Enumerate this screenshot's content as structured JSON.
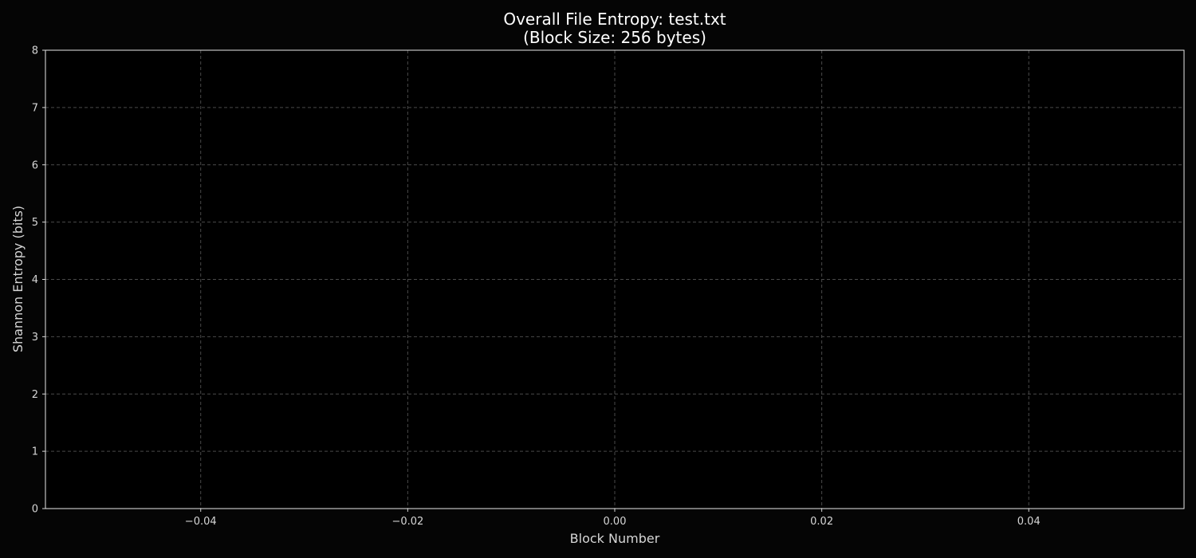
{
  "chart_data": {
    "type": "line",
    "title": "Overall File Entropy: test.txt",
    "subtitle": "(Block Size: 256 bytes)",
    "xlabel": "Block Number",
    "ylabel": "Shannon Entropy (bits)",
    "xlim": [
      -0.055,
      0.055
    ],
    "ylim": [
      0,
      8
    ],
    "xticks": [
      -0.04,
      -0.02,
      0.0,
      0.02,
      0.04
    ],
    "xtick_labels": [
      "−0.04",
      "−0.02",
      "0.00",
      "0.02",
      "0.04"
    ],
    "yticks": [
      0,
      1,
      2,
      3,
      4,
      5,
      6,
      7,
      8
    ],
    "ytick_labels": [
      "0",
      "1",
      "2",
      "3",
      "4",
      "5",
      "6",
      "7",
      "8"
    ],
    "grid": true,
    "series": [
      {
        "x": [],
        "y": []
      }
    ]
  }
}
